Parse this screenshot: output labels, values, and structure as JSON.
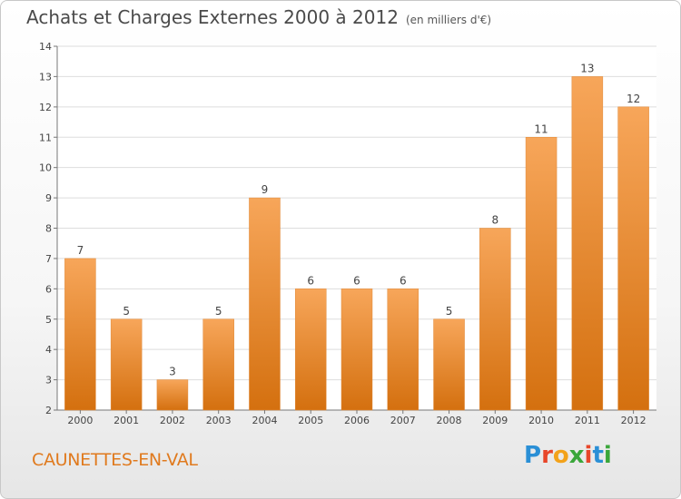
{
  "chart_data": {
    "type": "bar",
    "title": "Achats et Charges Externes 2000 à 2012",
    "subtitle": "(en milliers d'€)",
    "categories": [
      "2000",
      "2001",
      "2002",
      "2003",
      "2004",
      "2005",
      "2006",
      "2007",
      "2008",
      "2009",
      "2010",
      "2011",
      "2012"
    ],
    "values": [
      7,
      5,
      3,
      5,
      9,
      6,
      6,
      6,
      5,
      8,
      11,
      13,
      12
    ],
    "ylim": [
      2,
      14
    ],
    "yticks": [
      2,
      3,
      4,
      5,
      6,
      7,
      8,
      9,
      10,
      11,
      12,
      13,
      14
    ],
    "grid": true,
    "bar_color": "#f08a2a",
    "xlabel": "",
    "ylabel": ""
  },
  "footer": {
    "location": "CAUNETTES-EN-VAL",
    "logo": "Proxiti"
  },
  "colors": {
    "bar_top": "#f7a65a",
    "bar_bottom": "#d4700f",
    "location_text": "#e07a1e",
    "grid": "#dddddd"
  }
}
